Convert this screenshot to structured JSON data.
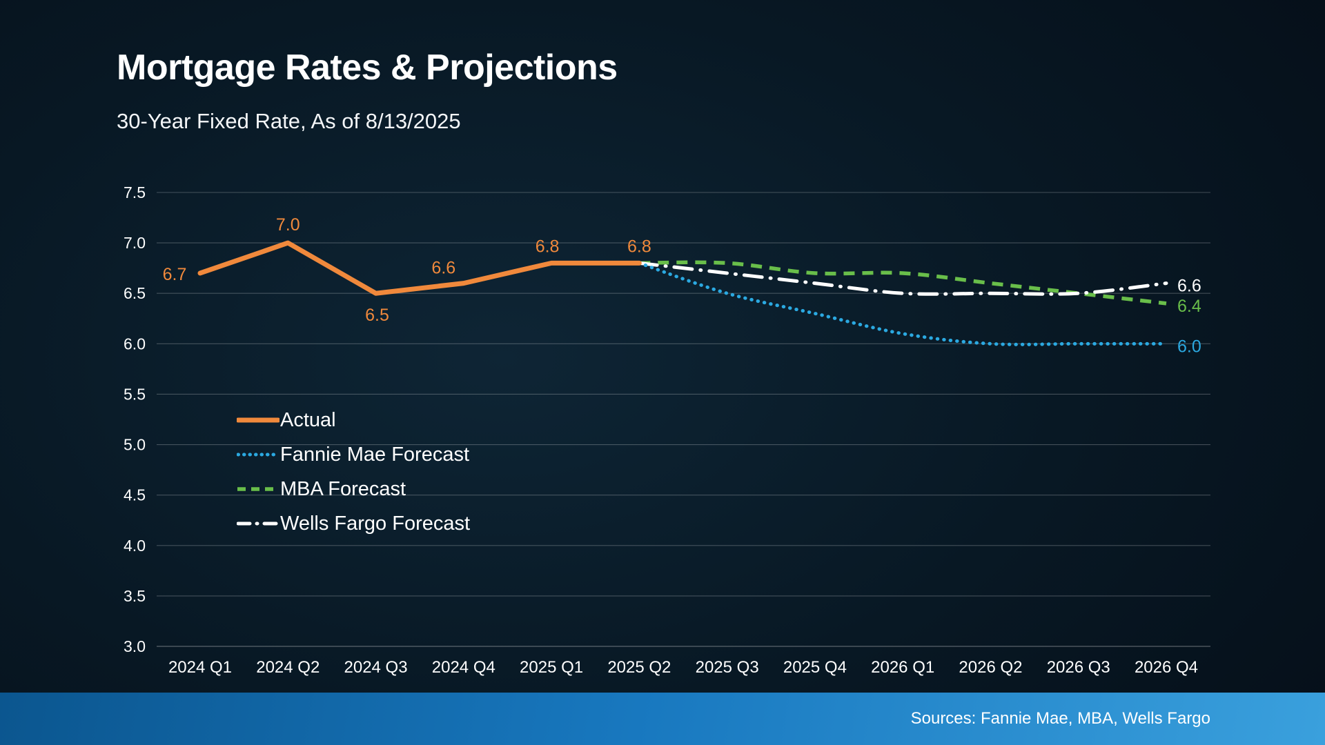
{
  "page": {
    "title": "Mortgage Rates & Projections",
    "subtitle": "30-Year Fixed Rate, As of 8/13/2025",
    "footer_sources": "Sources: Fannie Mae, MBA, Wells Fargo"
  },
  "colors": {
    "actual": "#F0893C",
    "fannie_mae": "#2BA9E1",
    "mba": "#69BE4A",
    "wells_fargo": "#FFFFFF",
    "grid_line": "rgba(255,255,255,0.24)",
    "axis_text": "#FFFFFF",
    "background": "#081824",
    "footer_bar_start": "#0B568F",
    "footer_bar_end": "#3AA0DD"
  },
  "chart_data": {
    "type": "line",
    "title": "Mortgage Rates & Projections",
    "subtitle": "30-Year Fixed Rate, As of 8/13/2025",
    "ylim": [
      3.0,
      7.5
    ],
    "y_ticks": [
      "7.5",
      "7.0",
      "6.5",
      "6.0",
      "5.5",
      "5.0",
      "4.5",
      "4.0",
      "3.5",
      "3.0"
    ],
    "x_categories": [
      "2024 Q1",
      "2024 Q2",
      "2024 Q3",
      "2024 Q4",
      "2025 Q1",
      "2025 Q2",
      "2025 Q3",
      "2025 Q4",
      "2026 Q1",
      "2026 Q2",
      "2026 Q3",
      "2026 Q4"
    ],
    "grid": "horizontal",
    "legend_position": "inside-left",
    "series": [
      {
        "name": "Actual",
        "style": "solid",
        "color_key": "actual",
        "x_start_index": 0,
        "values": [
          6.7,
          7.0,
          6.5,
          6.6,
          6.8,
          6.8
        ],
        "point_labels": [
          "6.7",
          "7.0",
          "6.5",
          "6.6",
          "6.8",
          "6.8"
        ]
      },
      {
        "name": "Fannie Mae Forecast",
        "style": "dotted",
        "color_key": "fannie_mae",
        "x_start_index": 5,
        "values": [
          6.8,
          6.5,
          6.3,
          6.1,
          6.0,
          6.0,
          6.0
        ],
        "end_label": "6.0"
      },
      {
        "name": "MBA Forecast",
        "style": "dashed",
        "color_key": "mba",
        "x_start_index": 5,
        "values": [
          6.8,
          6.8,
          6.7,
          6.7,
          6.6,
          6.5,
          6.4
        ],
        "end_label": "6.4"
      },
      {
        "name": "Wells Fargo Forecast",
        "style": "dashdot",
        "color_key": "wells_fargo",
        "x_start_index": 5,
        "values": [
          6.8,
          6.7,
          6.6,
          6.5,
          6.5,
          6.5,
          6.6
        ],
        "end_label": "6.6"
      }
    ]
  }
}
